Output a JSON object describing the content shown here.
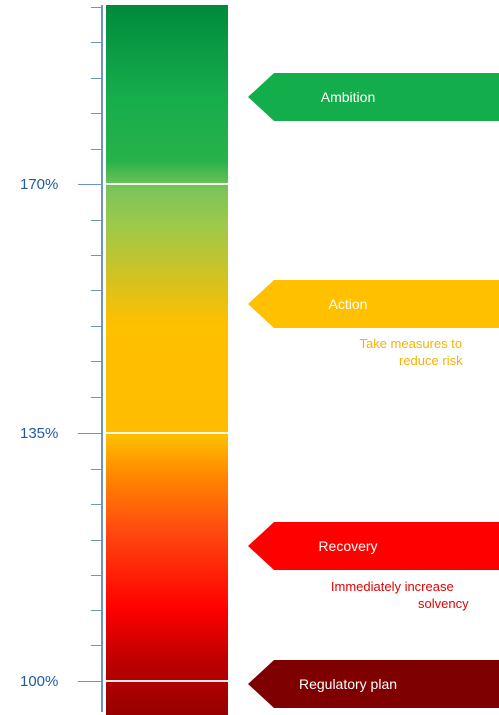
{
  "axis": {
    "ticks": [
      "170%",
      "135%",
      "100%"
    ]
  },
  "zones": [
    {
      "label": "Ambition",
      "color": "#14ad4b"
    },
    {
      "label": "Action",
      "color": "#ffc000",
      "description_line1": "Take measures to",
      "description_line2": "reduce risk"
    },
    {
      "label": "Recovery",
      "color": "#ff0000",
      "description_line1": "Immediately increase",
      "description_line2": "solvency"
    },
    {
      "label": "Regulatory plan",
      "color": "#7f0000"
    }
  ],
  "colors": {
    "axis": "#6f93c6",
    "tick_label": "#1f5b9e",
    "action_text": "#f5b400",
    "recovery_text": "#e60000"
  }
}
